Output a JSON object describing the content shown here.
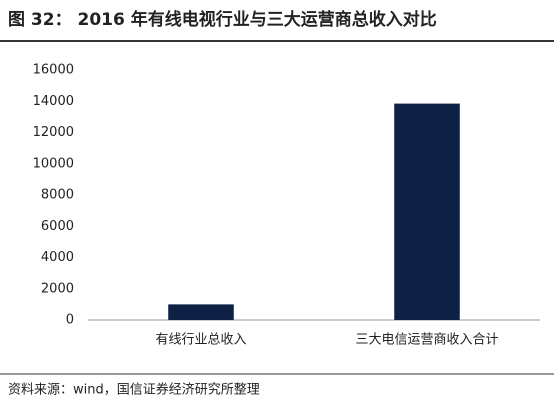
{
  "chart_data": {
    "type": "bar",
    "title": "图 32： 2016 年有线电视行业与三大运营商总收入对比",
    "categories": [
      "有线行业总收入",
      "三大电信运营商收入合计"
    ],
    "values": [
      1000,
      13850
    ],
    "color": "#0e2144",
    "ylim": [
      0,
      16000
    ],
    "yticks": [
      0,
      2000,
      4000,
      6000,
      8000,
      10000,
      12000,
      14000,
      16000
    ],
    "grid": false,
    "source": "资料来源：wind，国信证券经济研究所整理"
  }
}
